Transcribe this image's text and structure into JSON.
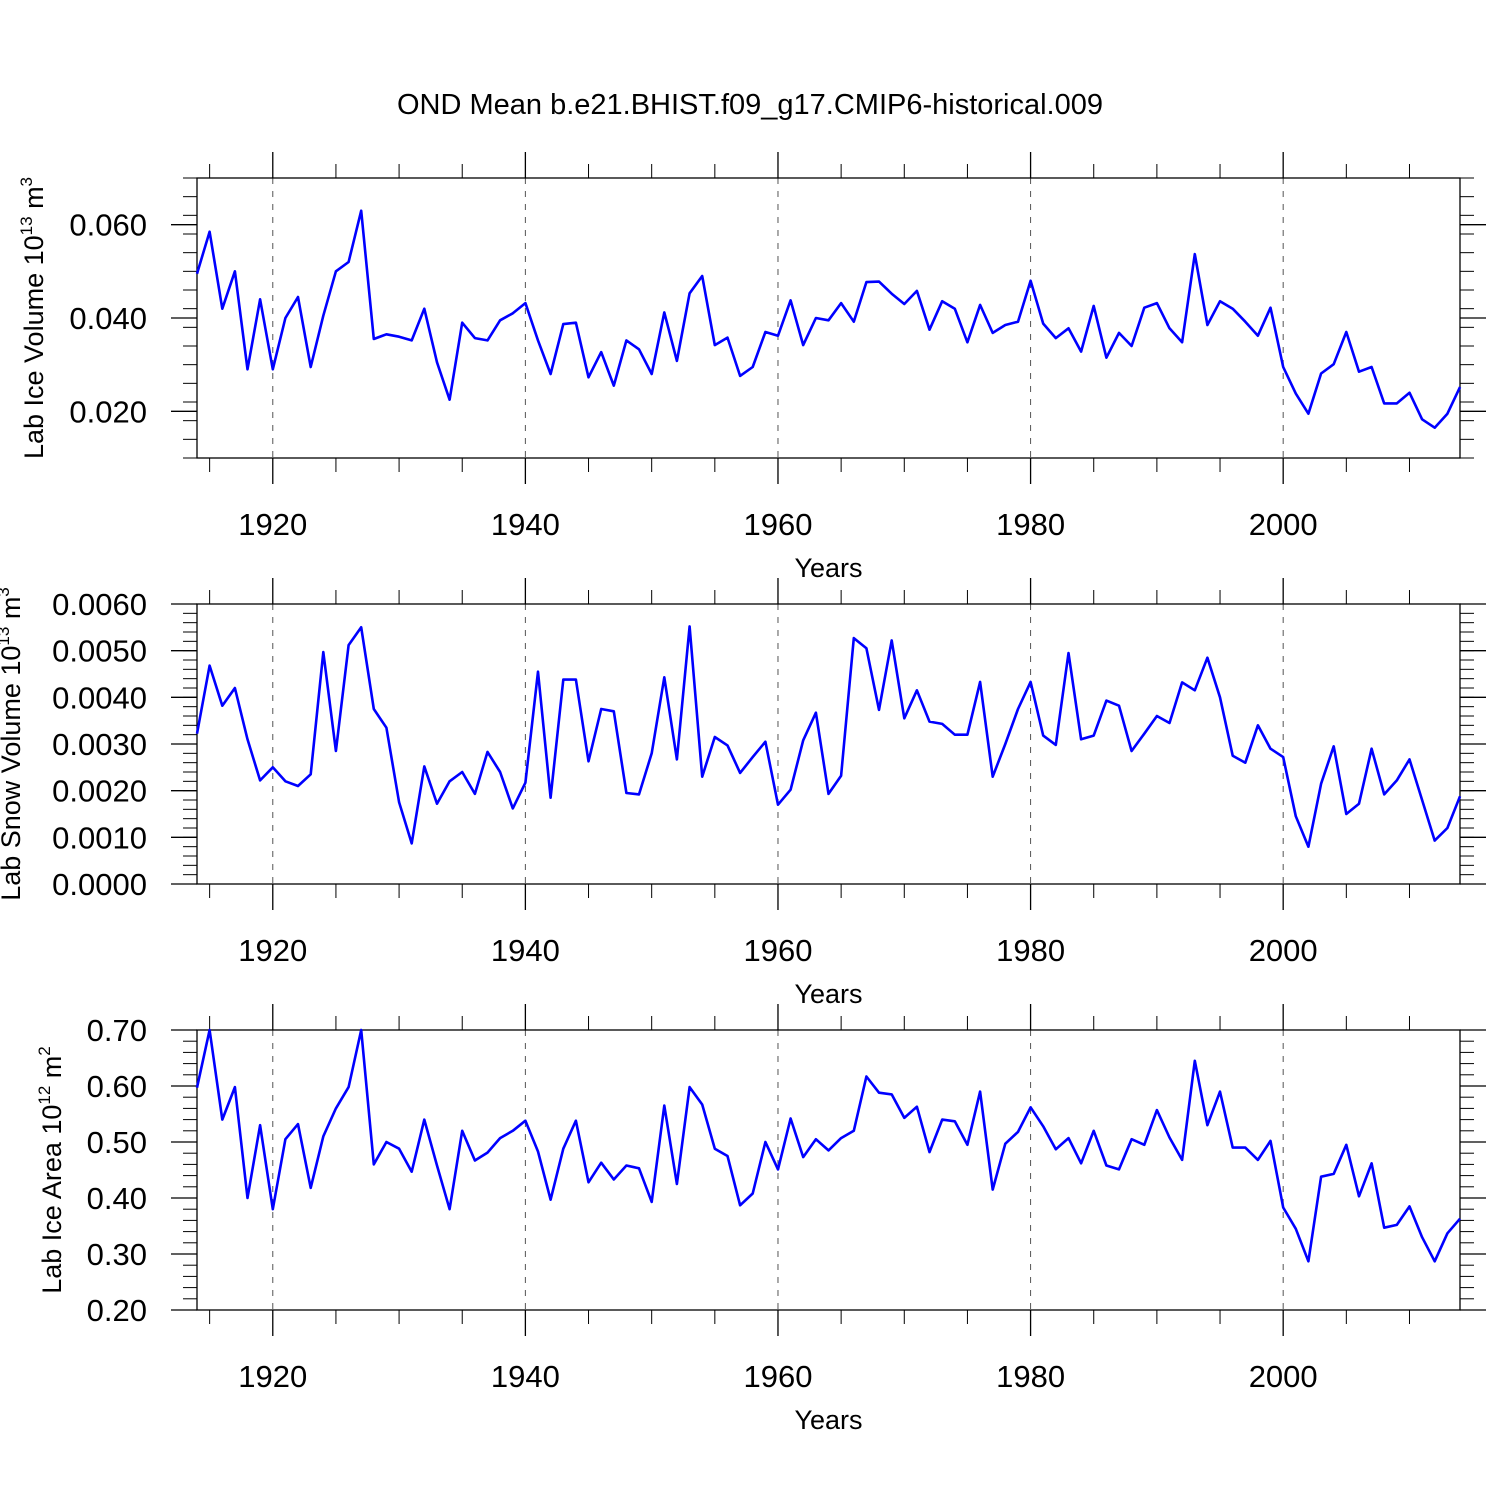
{
  "title": "OND Mean b.e21.BHIST.f09_g17.CMIP6-historical.009",
  "colors": {
    "series": "#0000ff",
    "frame": "#000000",
    "grid": "#555555"
  },
  "chart_data": [
    {
      "type": "line",
      "name": "ice-volume",
      "ylabel_base": "Lab Ice Volume 10",
      "ylabel_exp": "13",
      "ylabel_unit": " m",
      "ylabel_unit_exp": "3",
      "xlabel": "Years",
      "xlim": [
        1914,
        2014
      ],
      "ylim": [
        0.01,
        0.07
      ],
      "xticks": [
        1920,
        1940,
        1960,
        1980,
        2000
      ],
      "xtick_labels": [
        "1920",
        "1940",
        "1960",
        "1980",
        "2000"
      ],
      "yticks": [
        0.02,
        0.04,
        0.06
      ],
      "ytick_labels": [
        "0.020",
        "0.040",
        "0.060"
      ],
      "start_year": 1914,
      "values": [
        0.0495,
        0.0585,
        0.042,
        0.05,
        0.029,
        0.044,
        0.029,
        0.04,
        0.0445,
        0.0295,
        0.0405,
        0.05,
        0.052,
        0.063,
        0.0355,
        0.0365,
        0.036,
        0.0352,
        0.042,
        0.0305,
        0.0225,
        0.039,
        0.0357,
        0.0352,
        0.0395,
        0.041,
        0.0432,
        0.0352,
        0.028,
        0.0387,
        0.039,
        0.0273,
        0.0327,
        0.0255,
        0.0352,
        0.0333,
        0.028,
        0.0412,
        0.0308,
        0.0453,
        0.049,
        0.0342,
        0.0358,
        0.0276,
        0.0295,
        0.037,
        0.0362,
        0.0438,
        0.0342,
        0.04,
        0.0395,
        0.0432,
        0.0392,
        0.0477,
        0.0478,
        0.0452,
        0.043,
        0.0458,
        0.0375,
        0.0436,
        0.042,
        0.0348,
        0.0428,
        0.0368,
        0.0385,
        0.0392,
        0.048,
        0.0388,
        0.0357,
        0.0378,
        0.0328,
        0.0426,
        0.0315,
        0.0368,
        0.034,
        0.0422,
        0.0432,
        0.0378,
        0.0348,
        0.0537,
        0.0385,
        0.0436,
        0.042,
        0.0392,
        0.0362,
        0.0422,
        0.0295,
        0.0238,
        0.0195,
        0.0281,
        0.0301,
        0.037,
        0.0285,
        0.0295,
        0.0217,
        0.0217,
        0.024,
        0.0183,
        0.0165,
        0.0195,
        0.0252
      ]
    },
    {
      "type": "line",
      "name": "snow-volume",
      "ylabel_base": "Lab Snow Volume 10",
      "ylabel_exp": "13",
      "ylabel_unit": " m",
      "ylabel_unit_exp": "3",
      "xlabel": "Years",
      "xlim": [
        1914,
        2014
      ],
      "ylim": [
        0.0,
        0.006
      ],
      "xticks": [
        1920,
        1940,
        1960,
        1980,
        2000
      ],
      "xtick_labels": [
        "1920",
        "1940",
        "1960",
        "1980",
        "2000"
      ],
      "yticks": [
        0.0,
        0.001,
        0.002,
        0.003,
        0.004,
        0.005,
        0.006
      ],
      "ytick_labels": [
        "0.0000",
        "0.0010",
        "0.0020",
        "0.0030",
        "0.0040",
        "0.0050",
        "0.0060"
      ],
      "start_year": 1914,
      "values": [
        0.00322,
        0.00468,
        0.00382,
        0.0042,
        0.0031,
        0.00222,
        0.0025,
        0.0022,
        0.0021,
        0.00235,
        0.00497,
        0.00285,
        0.00512,
        0.0055,
        0.00375,
        0.00335,
        0.00175,
        0.00087,
        0.00252,
        0.00172,
        0.0022,
        0.0024,
        0.00193,
        0.00283,
        0.0024,
        0.00162,
        0.00217,
        0.00455,
        0.00185,
        0.00438,
        0.00438,
        0.00263,
        0.00375,
        0.0037,
        0.00195,
        0.00192,
        0.0028,
        0.00443,
        0.00267,
        0.00552,
        0.0023,
        0.00315,
        0.00297,
        0.00238,
        0.00272,
        0.00305,
        0.0017,
        0.00202,
        0.00308,
        0.00367,
        0.00193,
        0.00232,
        0.00527,
        0.00505,
        0.00373,
        0.00522,
        0.00355,
        0.00415,
        0.00348,
        0.00343,
        0.0032,
        0.0032,
        0.00433,
        0.0023,
        0.003,
        0.00375,
        0.00433,
        0.00318,
        0.00298,
        0.00495,
        0.0031,
        0.00318,
        0.00393,
        0.00382,
        0.00285,
        0.00322,
        0.0036,
        0.00345,
        0.00432,
        0.00415,
        0.00485,
        0.004,
        0.00275,
        0.0026,
        0.0034,
        0.0029,
        0.00272,
        0.00145,
        0.0008,
        0.00215,
        0.00295,
        0.0015,
        0.00172,
        0.0029,
        0.00192,
        0.00222,
        0.00267,
        0.0018,
        0.00093,
        0.0012,
        0.00188
      ]
    },
    {
      "type": "line",
      "name": "ice-area",
      "ylabel_base": "Lab Ice Area 10",
      "ylabel_exp": "12",
      "ylabel_unit": " m",
      "ylabel_unit_exp": "2",
      "xlabel": "Years",
      "xlim": [
        1914,
        2014
      ],
      "ylim": [
        0.2,
        0.7
      ],
      "xticks": [
        1920,
        1940,
        1960,
        1980,
        2000
      ],
      "xtick_labels": [
        "1920",
        "1940",
        "1960",
        "1980",
        "2000"
      ],
      "yticks": [
        0.2,
        0.3,
        0.4,
        0.5,
        0.6,
        0.7
      ],
      "ytick_labels": [
        "0.20",
        "0.30",
        "0.40",
        "0.50",
        "0.60",
        "0.70"
      ],
      "start_year": 1914,
      "values": [
        0.597,
        0.7,
        0.54,
        0.598,
        0.4,
        0.53,
        0.38,
        0.505,
        0.532,
        0.418,
        0.51,
        0.56,
        0.598,
        0.7,
        0.46,
        0.5,
        0.488,
        0.447,
        0.54,
        0.458,
        0.38,
        0.52,
        0.467,
        0.481,
        0.507,
        0.52,
        0.538,
        0.483,
        0.397,
        0.488,
        0.538,
        0.428,
        0.463,
        0.433,
        0.458,
        0.453,
        0.393,
        0.565,
        0.425,
        0.598,
        0.567,
        0.488,
        0.475,
        0.387,
        0.408,
        0.5,
        0.451,
        0.542,
        0.473,
        0.505,
        0.485,
        0.507,
        0.52,
        0.617,
        0.588,
        0.585,
        0.543,
        0.563,
        0.482,
        0.54,
        0.537,
        0.495,
        0.59,
        0.415,
        0.497,
        0.518,
        0.562,
        0.528,
        0.487,
        0.507,
        0.462,
        0.52,
        0.458,
        0.451,
        0.505,
        0.495,
        0.557,
        0.508,
        0.468,
        0.645,
        0.53,
        0.59,
        0.49,
        0.49,
        0.468,
        0.502,
        0.383,
        0.345,
        0.287,
        0.438,
        0.443,
        0.495,
        0.403,
        0.462,
        0.347,
        0.352,
        0.385,
        0.33,
        0.287,
        0.337,
        0.363
      ]
    }
  ]
}
